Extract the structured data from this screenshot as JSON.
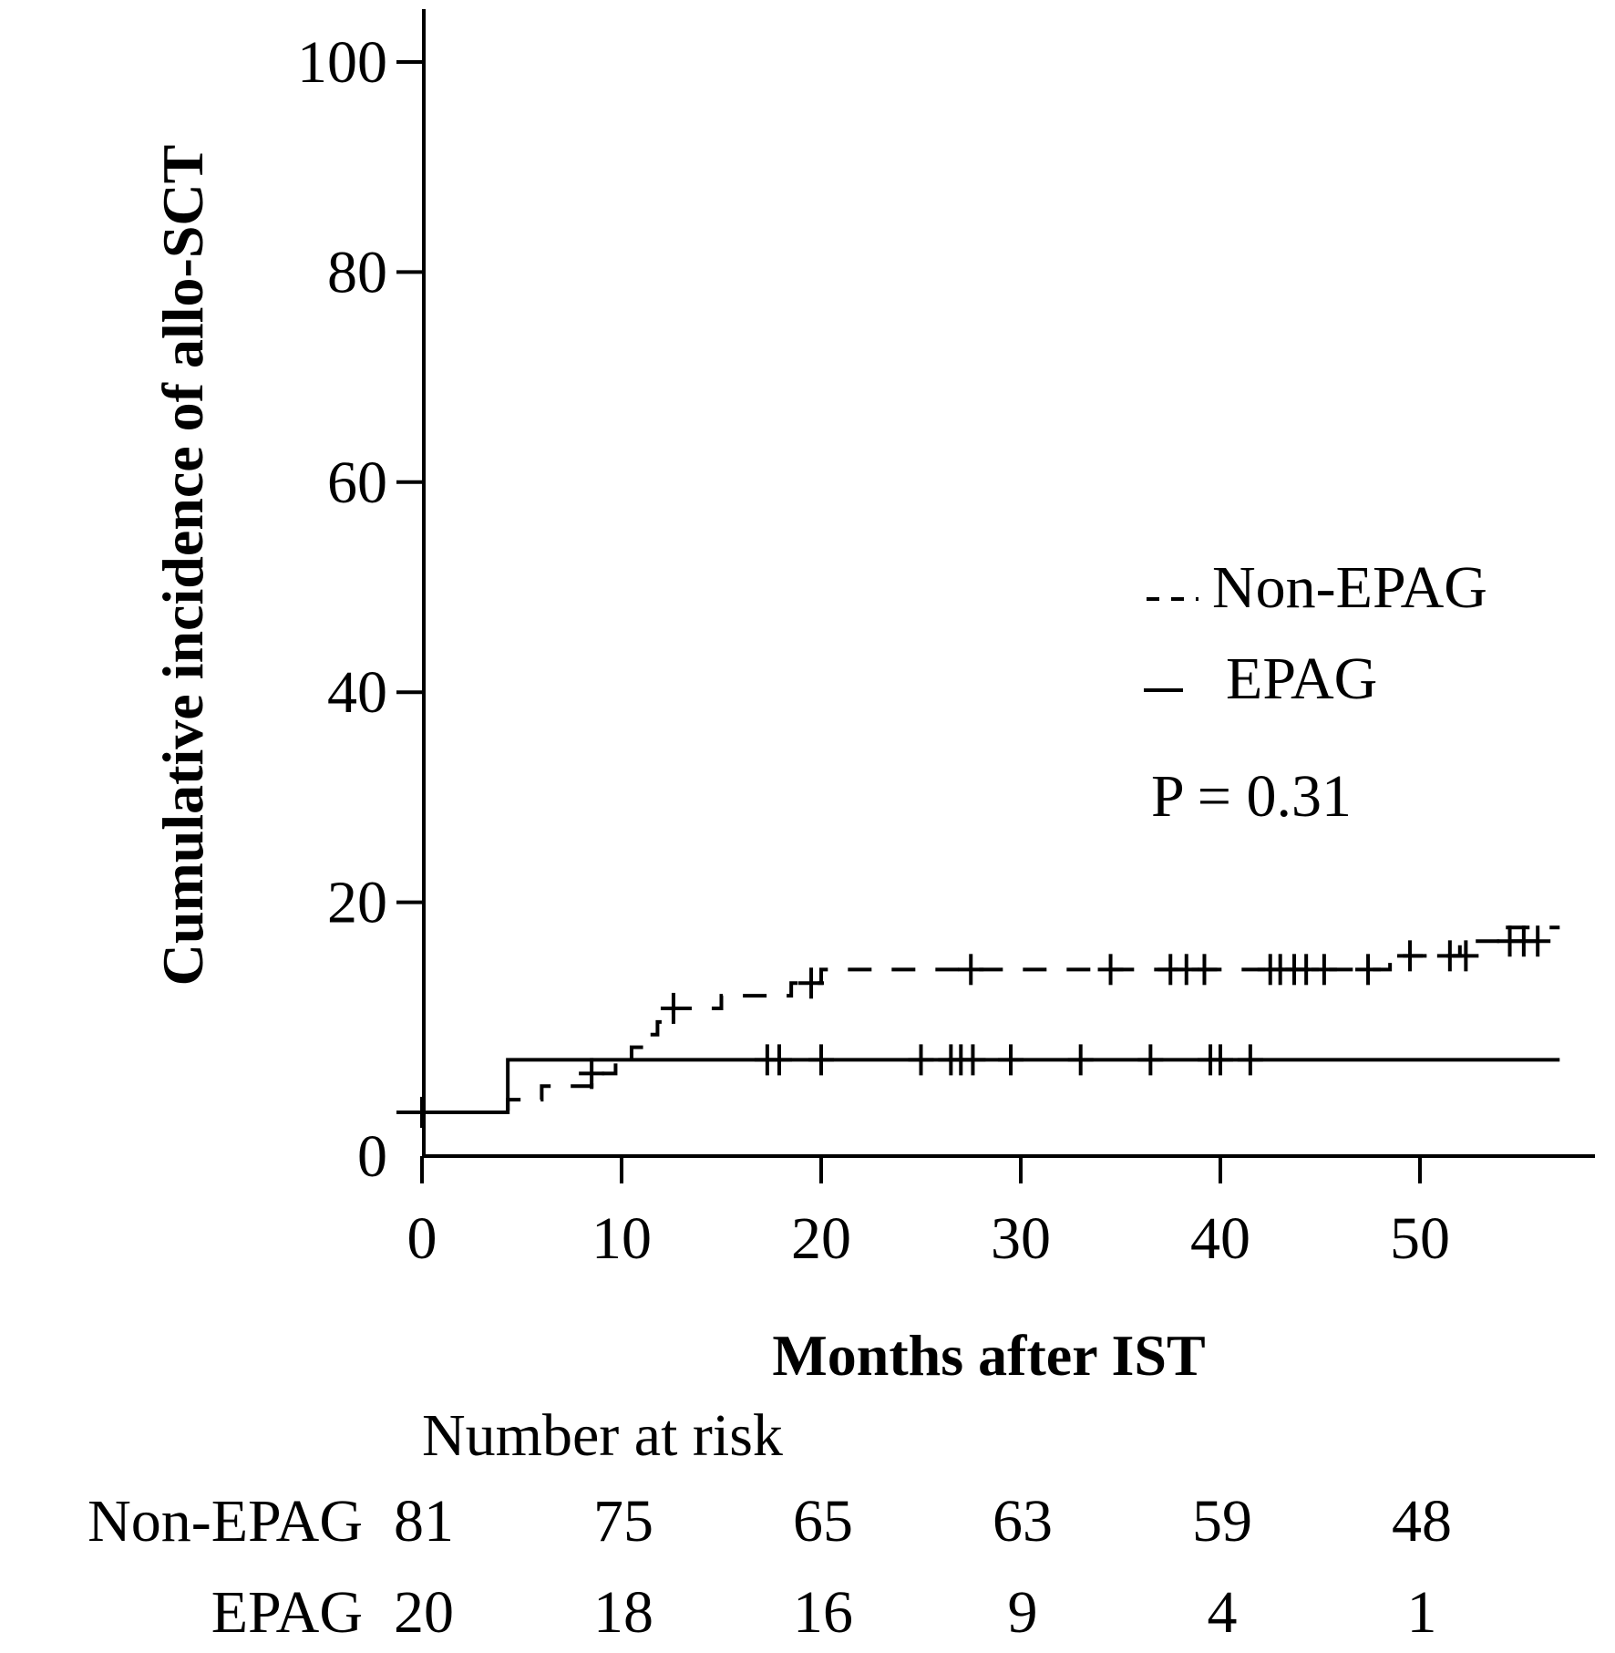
{
  "chart_data": {
    "type": "line",
    "subtype": "cumulative-incidence-step",
    "xlabel": "Months after IST",
    "ylabel": "Cumulative incidence of allo-SCT",
    "xlim": [
      -2,
      57
    ],
    "ylim": [
      -4,
      104
    ],
    "xticks": [
      0,
      10,
      20,
      30,
      40,
      50
    ],
    "yticks": [
      0,
      20,
      40,
      60,
      80,
      100
    ],
    "xtick_labels": [
      "0",
      "10",
      "20",
      "30",
      "40",
      "50"
    ],
    "ytick_labels": [
      "0",
      "20",
      "40",
      "60",
      "80",
      "100"
    ],
    "grid": false,
    "legend_position": "right",
    "annotation": "P = 0.31",
    "series": [
      {
        "name": "Non-EPAG",
        "style": "dashed",
        "color": "#000000",
        "steps": [
          [
            0,
            0
          ],
          [
            4.3,
            1.2
          ],
          [
            6.0,
            2.5
          ],
          [
            8.5,
            3.7
          ],
          [
            9.7,
            4.9
          ],
          [
            10.5,
            6.2
          ],
          [
            11.3,
            7.4
          ],
          [
            11.8,
            8.6
          ],
          [
            12.6,
            9.9
          ],
          [
            15.0,
            11.1
          ],
          [
            18.5,
            12.3
          ],
          [
            20.0,
            13.6
          ],
          [
            48.5,
            14.9
          ],
          [
            52.0,
            16.3
          ],
          [
            54.0,
            17.6
          ]
        ],
        "end_x": 57,
        "censored": [
          [
            8.5,
            3.7
          ],
          [
            12.6,
            9.9
          ],
          [
            19.5,
            12.3
          ],
          [
            27.5,
            13.6
          ],
          [
            34.5,
            13.6
          ],
          [
            37.5,
            13.6
          ],
          [
            38.3,
            13.6
          ],
          [
            39.2,
            13.6
          ],
          [
            42.5,
            13.6
          ],
          [
            43.0,
            13.6
          ],
          [
            43.7,
            13.6
          ],
          [
            44.3,
            13.6
          ],
          [
            45.2,
            13.6
          ],
          [
            47.4,
            13.6
          ],
          [
            49.5,
            14.9
          ],
          [
            51.5,
            14.9
          ],
          [
            52.3,
            14.9
          ],
          [
            54.5,
            16.3
          ],
          [
            55.2,
            16.3
          ],
          [
            55.9,
            16.3
          ]
        ]
      },
      {
        "name": "EPAG",
        "style": "solid",
        "color": "#000000",
        "steps": [
          [
            0,
            0
          ],
          [
            4.3,
            5.0
          ]
        ],
        "end_x": 57,
        "censored": [
          [
            17.3,
            5.0
          ],
          [
            17.9,
            5.0
          ],
          [
            20.0,
            5.0
          ],
          [
            25.0,
            5.0
          ],
          [
            26.5,
            5.0
          ],
          [
            27.0,
            5.0
          ],
          [
            27.6,
            5.0
          ],
          [
            29.5,
            5.0
          ],
          [
            33.0,
            5.0
          ],
          [
            36.5,
            5.0
          ],
          [
            39.5,
            5.0
          ],
          [
            40.0,
            5.0
          ],
          [
            41.5,
            5.0
          ]
        ]
      }
    ],
    "risk_table": {
      "title": "Number at risk",
      "times": [
        0,
        10,
        20,
        30,
        40,
        50
      ],
      "rows": [
        {
          "label": "Non-EPAG",
          "values": [
            "81",
            "75",
            "65",
            "63",
            "59",
            "48"
          ]
        },
        {
          "label": "EPAG",
          "values": [
            "20",
            "18",
            "16",
            "9",
            "4",
            "1"
          ]
        }
      ]
    }
  }
}
